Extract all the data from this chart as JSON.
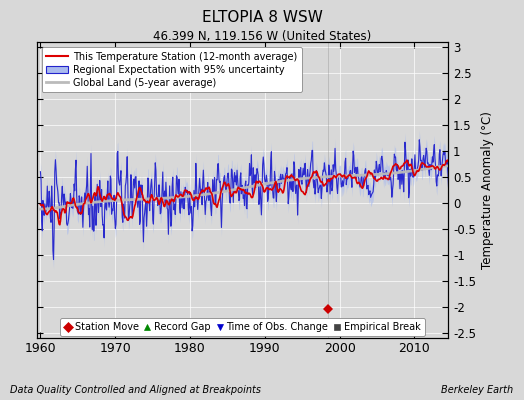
{
  "title": "ELTOPIA 8 WSW",
  "subtitle": "46.399 N, 119.156 W (United States)",
  "xlabel_left": "Data Quality Controlled and Aligned at Breakpoints",
  "xlabel_right": "Berkeley Earth",
  "ylabel": "Temperature Anomaly (°C)",
  "xlim": [
    1959.5,
    2014.5
  ],
  "ylim": [
    -2.6,
    3.1
  ],
  "yticks_right": [
    -2.5,
    -2,
    -1.5,
    -1,
    -0.5,
    0,
    0.5,
    1,
    1.5,
    2,
    2.5,
    3
  ],
  "yticks_left": [
    -2.5,
    -2,
    -1.5,
    -1,
    -0.5,
    0,
    0.5,
    1,
    1.5,
    2,
    2.5,
    3
  ],
  "xticks": [
    1960,
    1970,
    1980,
    1990,
    2000,
    2010
  ],
  "bg_color": "#d8d8d8",
  "plot_bg_color": "#d8d8d8",
  "legend_entries": [
    {
      "label": "This Temperature Station (12-month average)",
      "color": "#dd0000",
      "lw": 1.5
    },
    {
      "label": "Regional Expectation with 95% uncertainty",
      "color": "#2222cc",
      "lw": 1.5
    },
    {
      "label": "Global Land (5-year average)",
      "color": "#aaaaaa",
      "lw": 2.0
    }
  ],
  "marker_legend": [
    {
      "label": "Station Move",
      "marker": "D",
      "color": "#cc0000"
    },
    {
      "label": "Record Gap",
      "marker": "^",
      "color": "#008800"
    },
    {
      "label": "Time of Obs. Change",
      "marker": "v",
      "color": "#0000cc"
    },
    {
      "label": "Empirical Break",
      "marker": "s",
      "color": "#444444"
    }
  ],
  "station_move_x": 1998.5,
  "station_move_y": -2.05,
  "seed": 42
}
